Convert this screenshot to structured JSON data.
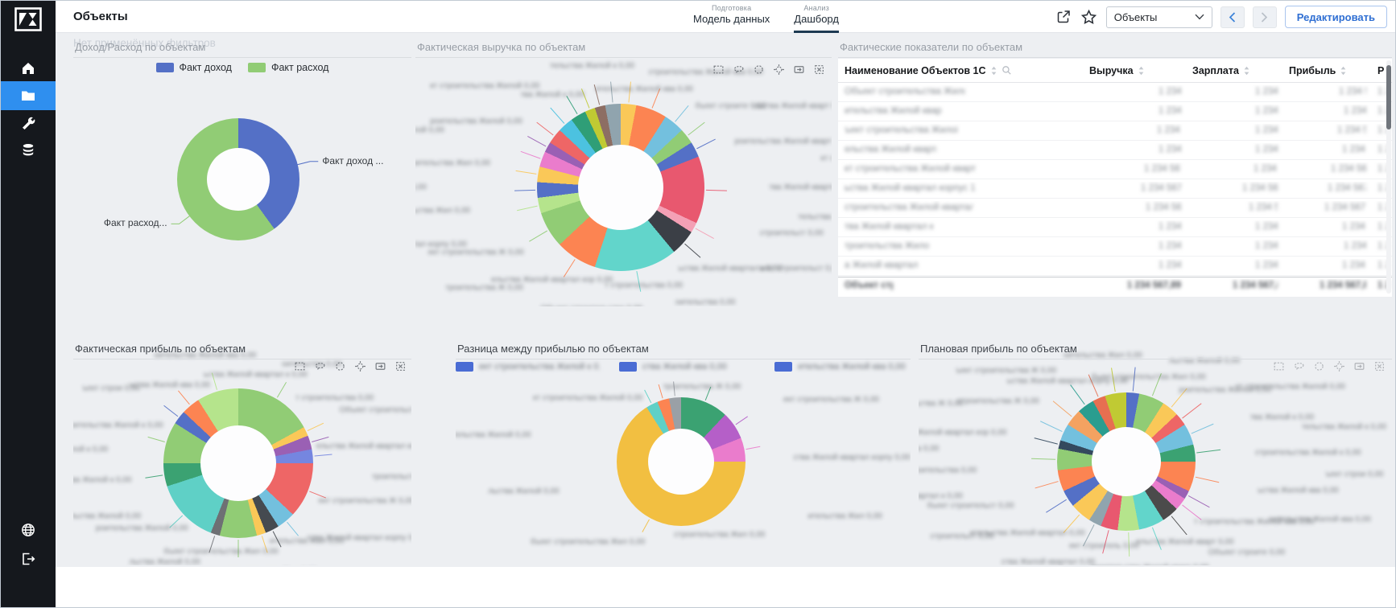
{
  "sidebar": {
    "items": [
      {
        "name": "home",
        "icon": "home-icon",
        "active": false
      },
      {
        "name": "projects",
        "icon": "folder-icon",
        "active": true
      },
      {
        "name": "tools",
        "icon": "wrench-icon",
        "active": false
      },
      {
        "name": "data",
        "icon": "database-icon",
        "active": false
      }
    ],
    "bottom_items": [
      {
        "name": "language",
        "icon": "globe-icon"
      },
      {
        "name": "logout",
        "icon": "logout-icon"
      }
    ]
  },
  "header": {
    "page_title": "Объекты",
    "tab_groups": [
      {
        "section": "Подготовка",
        "label": "Модель данных",
        "active": false
      },
      {
        "section": "Анализ",
        "label": "Дашборд",
        "active": true
      }
    ],
    "dashboard_select_value": "Объекты",
    "edit_button_label": "Редактировать"
  },
  "filters_note": "Нет применённых фильтров",
  "redacted": {
    "label": "Объект строительства Жилой квартал корпус 12 дом 7",
    "cell": "1 234 567,89"
  },
  "chart_data": [
    {
      "id": "income-expense",
      "type": "pie",
      "title": "Доход/Расход по объектам",
      "legend": [
        {
          "label": "Факт доход",
          "color": "#5470c6"
        },
        {
          "label": "Факт расход",
          "color": "#91cc75"
        }
      ],
      "segments": [
        {
          "name": "Факт доход",
          "value": 40,
          "color": "#5470c6"
        },
        {
          "name": "Факт расход",
          "value": 60,
          "color": "#91cc75"
        }
      ],
      "callout_labels": [
        {
          "text": "Факт доход ...",
          "angle": 76,
          "color": "#5470c6"
        },
        {
          "text": "Факт расход...",
          "angle": 233,
          "color": "#91cc75"
        }
      ]
    },
    {
      "id": "actual-revenue",
      "type": "pie",
      "title": "Фактическая выручка по объектам",
      "labels_redacted": true,
      "segments": [
        {
          "value": 3,
          "color": "#fac858"
        },
        {
          "value": 6,
          "color": "#fc8452"
        },
        {
          "value": 4,
          "color": "#73c0de"
        },
        {
          "value": 3,
          "color": "#91cc75"
        },
        {
          "value": 3,
          "color": "#5470c6"
        },
        {
          "value": 13,
          "color": "#e8586f"
        },
        {
          "value": 2,
          "color": "#f4a0b5"
        },
        {
          "value": 5,
          "color": "#3b3f46"
        },
        {
          "value": 16,
          "color": "#62d5cb"
        },
        {
          "value": 8,
          "color": "#fc8452"
        },
        {
          "value": 7,
          "color": "#91cc75"
        },
        {
          "value": 3,
          "color": "#b5e48c"
        },
        {
          "value": 3,
          "color": "#5470c6"
        },
        {
          "value": 3,
          "color": "#fac858"
        },
        {
          "value": 3,
          "color": "#ea7ccc"
        },
        {
          "value": 2,
          "color": "#9a60b4"
        },
        {
          "value": 3,
          "color": "#ee6666"
        },
        {
          "value": 3,
          "color": "#4cc2e0"
        },
        {
          "value": 3,
          "color": "#2f9e77"
        },
        {
          "value": 2,
          "color": "#c0ca33"
        },
        {
          "value": 2,
          "color": "#8d6e63"
        },
        {
          "value": 3,
          "color": "#90a4ae"
        }
      ]
    },
    {
      "id": "actual-indicators",
      "type": "table",
      "title": "Фактические показатели по объектам",
      "columns": [
        {
          "label": "Наименование Объектов 1С",
          "sortable": true,
          "searchable": true
        },
        {
          "label": "Выручка",
          "sortable": true
        },
        {
          "label": "Зарплата",
          "sortable": true
        },
        {
          "label": "Прибыль",
          "sortable": true
        },
        {
          "label": "Р",
          "sortable": false
        }
      ],
      "rows_redacted": true,
      "row_count": 10,
      "has_total_row": true
    },
    {
      "id": "actual-profit",
      "type": "pie",
      "title": "Фактическая прибыль по объектам",
      "labels_redacted": true,
      "segments": [
        {
          "value": 17,
          "color": "#91cc75"
        },
        {
          "value": 2,
          "color": "#fac858"
        },
        {
          "value": 3,
          "color": "#9a60b4"
        },
        {
          "value": 3,
          "color": "#7586e0"
        },
        {
          "value": 12,
          "color": "#ee6666"
        },
        {
          "value": 4,
          "color": "#73c0de"
        },
        {
          "value": 3,
          "color": "#454a50"
        },
        {
          "value": 2,
          "color": "#fac858"
        },
        {
          "value": 8,
          "color": "#91cc75"
        },
        {
          "value": 2,
          "color": "#6e7074"
        },
        {
          "value": 14,
          "color": "#5fd0c6"
        },
        {
          "value": 5,
          "color": "#3ba272"
        },
        {
          "value": 9,
          "color": "#91cc75"
        },
        {
          "value": 3,
          "color": "#5470c6"
        },
        {
          "value": 4,
          "color": "#fc8452"
        },
        {
          "value": 9,
          "color": "#b5e48c"
        }
      ]
    },
    {
      "id": "profit-difference",
      "type": "pie",
      "title": "Разница между прибылью по объектам",
      "labels_redacted": true,
      "legend_redacted": {
        "count": 3,
        "chip_color": "#4a6cd4"
      },
      "segments": [
        {
          "value": 12,
          "color": "#3ba272"
        },
        {
          "value": 7,
          "color": "#b55fc8"
        },
        {
          "value": 6,
          "color": "#ea7ccc"
        },
        {
          "value": 66,
          "color": "#f2bf41"
        },
        {
          "value": 3,
          "color": "#5fd0c6"
        },
        {
          "value": 3,
          "color": "#fc8452"
        },
        {
          "value": 3,
          "color": "#9aa0a6"
        }
      ]
    },
    {
      "id": "planned-profit",
      "type": "pie",
      "title": "Плановая прибыль по объектам",
      "labels_redacted": true,
      "segments": [
        {
          "value": 3,
          "color": "#5470c6"
        },
        {
          "value": 6,
          "color": "#91cc75"
        },
        {
          "value": 4,
          "color": "#fac858"
        },
        {
          "value": 3,
          "color": "#ee6666"
        },
        {
          "value": 5,
          "color": "#73c0de"
        },
        {
          "value": 4,
          "color": "#3ba272"
        },
        {
          "value": 7,
          "color": "#fc8452"
        },
        {
          "value": 2,
          "color": "#9a60b4"
        },
        {
          "value": 3,
          "color": "#ea7ccc"
        },
        {
          "value": 4,
          "color": "#4b4b4b"
        },
        {
          "value": 6,
          "color": "#62d5cb"
        },
        {
          "value": 5,
          "color": "#b5e48c"
        },
        {
          "value": 4,
          "color": "#e8586f"
        },
        {
          "value": 3,
          "color": "#90a4ae"
        },
        {
          "value": 5,
          "color": "#fac858"
        },
        {
          "value": 4,
          "color": "#5470c6"
        },
        {
          "value": 5,
          "color": "#fc8452"
        },
        {
          "value": 5,
          "color": "#91cc75"
        },
        {
          "value": 2,
          "color": "#34495e"
        },
        {
          "value": 4,
          "color": "#73c0de"
        },
        {
          "value": 4,
          "color": "#f4a261"
        },
        {
          "value": 4,
          "color": "#2a9d8f"
        },
        {
          "value": 3,
          "color": "#e76f51"
        },
        {
          "value": 5,
          "color": "#c0ca33"
        }
      ]
    }
  ]
}
